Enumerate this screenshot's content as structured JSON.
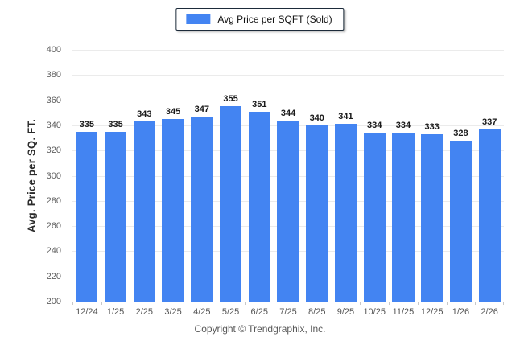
{
  "page": {
    "footer": "Copyright © Trendgraphix, Inc."
  },
  "chart_data": {
    "type": "bar",
    "title": "",
    "xlabel": "",
    "ylabel": "Avg. Price per SQ. FT.",
    "categories": [
      "12/24",
      "1/25",
      "2/25",
      "3/25",
      "4/25",
      "5/25",
      "6/25",
      "7/25",
      "8/25",
      "9/25",
      "10/25",
      "11/25",
      "12/25",
      "1/26",
      "2/26"
    ],
    "series": [
      {
        "name": "Avg Price per SQFT (Sold)",
        "values": [
          335,
          335,
          343,
          345,
          347,
          355,
          351,
          344,
          340,
          341,
          334,
          334,
          333,
          328,
          337
        ]
      }
    ],
    "ylim": [
      200,
      400
    ],
    "ytick_step": 20,
    "grid": true,
    "legend_position": "top-center",
    "bar_color": "#4384F2",
    "gridline_color": "#ebebeb",
    "axis_color": "#c8c8c8"
  }
}
